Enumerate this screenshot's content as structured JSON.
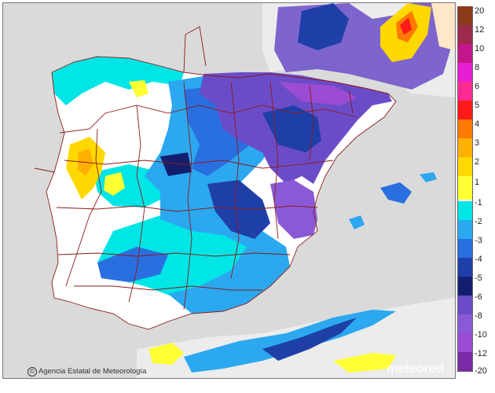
{
  "credit": {
    "icon": "copyright-icon",
    "text": "Agencia Estatal de Meteorología"
  },
  "watermark": "meteored",
  "legend": {
    "entries": [
      {
        "label": "20",
        "color": "#8b3a1a"
      },
      {
        "label": "12",
        "color": "#9c2a4a"
      },
      {
        "label": "10",
        "color": "#c4168c"
      },
      {
        "label": "8",
        "color": "#e81ed2"
      },
      {
        "label": "6",
        "color": "#ff2a92"
      },
      {
        "label": "5",
        "color": "#ff1a1a"
      },
      {
        "label": "4",
        "color": "#ff7a00"
      },
      {
        "label": "3",
        "color": "#ffb000"
      },
      {
        "label": "2",
        "color": "#ffd800"
      },
      {
        "label": "1",
        "color": "#ffff33"
      },
      {
        "label": "-1",
        "color": "#ffffff"
      },
      {
        "label": "-2",
        "color": "#00e5e5"
      },
      {
        "label": "-3",
        "color": "#2ba8f0"
      },
      {
        "label": "-4",
        "color": "#2a6fe0"
      },
      {
        "label": "-5",
        "color": "#1f3fa8"
      },
      {
        "label": "-6",
        "color": "#131f6e"
      },
      {
        "label": "-8",
        "color": "#6b4cc8"
      },
      {
        "label": "-10",
        "color": "#8a5ad6"
      },
      {
        "label": "-12",
        "color": "#9c4cd2"
      },
      {
        "label": "-20",
        "color": "#7a2aa6"
      }
    ]
  },
  "colors": {
    "sea": "#d9d9d9",
    "land_base": "#ffffff",
    "borders": "#8b1a1a"
  }
}
